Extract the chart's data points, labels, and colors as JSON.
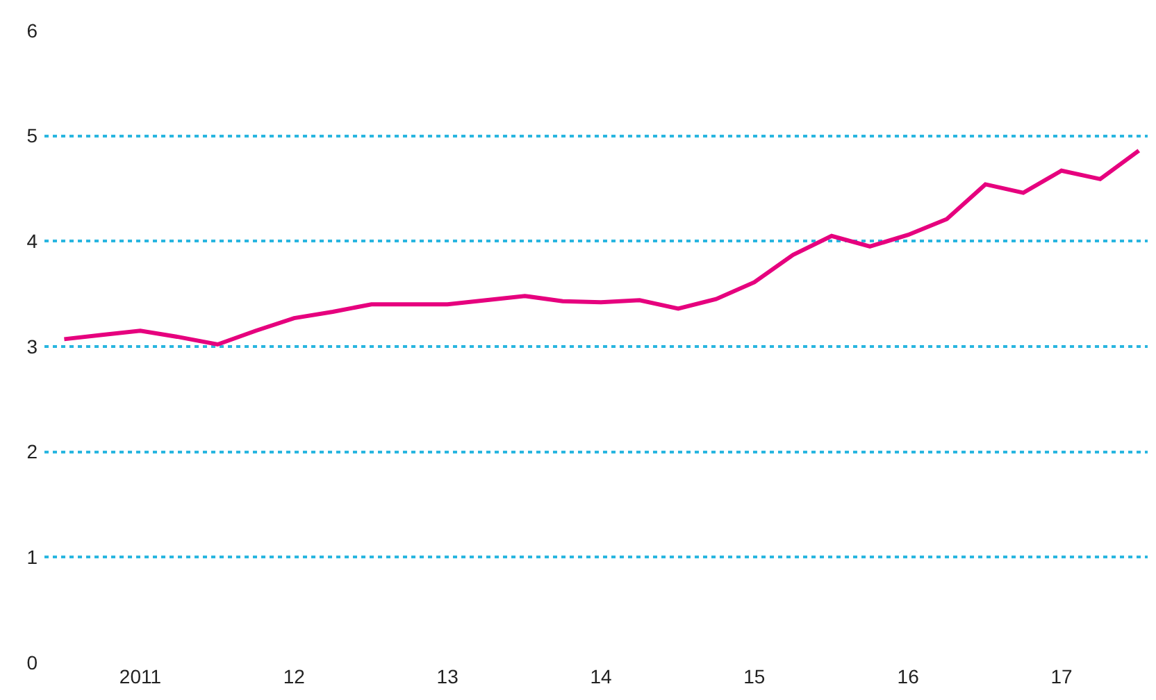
{
  "chart_data": {
    "type": "line",
    "x": [
      "2011-01",
      "2011-04",
      "2011-07",
      "2011-10",
      "2012-01",
      "2012-04",
      "2012-07",
      "2012-10",
      "2013-01",
      "2013-04",
      "2013-07",
      "2013-10",
      "2014-01",
      "2014-04",
      "2014-07",
      "2014-10",
      "2015-01",
      "2015-04",
      "2015-07",
      "2015-10",
      "2016-01",
      "2016-04",
      "2016-07",
      "2016-10",
      "2017-01",
      "2017-04",
      "2017-07",
      "2017-10",
      "2018-01"
    ],
    "series": [
      {
        "color": "#e6007e",
        "values": [
          3.07,
          3.11,
          3.15,
          3.09,
          3.02,
          3.15,
          3.27,
          3.33,
          3.4,
          3.4,
          3.4,
          3.44,
          3.48,
          3.43,
          3.42,
          3.44,
          3.36,
          3.45,
          3.61,
          3.87,
          4.05,
          3.95,
          4.06,
          4.21,
          4.54,
          4.46,
          4.67,
          4.59,
          4.86
        ]
      }
    ],
    "xlim": [
      "2010-11-15",
      "2018-01-22"
    ],
    "xticks": [
      {
        "value": "2011-07-01",
        "label": "2011"
      },
      {
        "value": "2012-07-01",
        "label": "12"
      },
      {
        "value": "2013-07-01",
        "label": "13"
      },
      {
        "value": "2014-07-01",
        "label": "14"
      },
      {
        "value": "2015-07-01",
        "label": "15"
      },
      {
        "value": "2016-07-01",
        "label": "16"
      },
      {
        "value": "2017-07-01",
        "label": "17"
      }
    ],
    "ylim": [
      0,
      6
    ],
    "yticks": [
      0,
      1,
      2,
      3,
      4,
      5,
      6
    ],
    "grid": "y",
    "line_style": "solid",
    "marker": "none",
    "legend": false
  }
}
